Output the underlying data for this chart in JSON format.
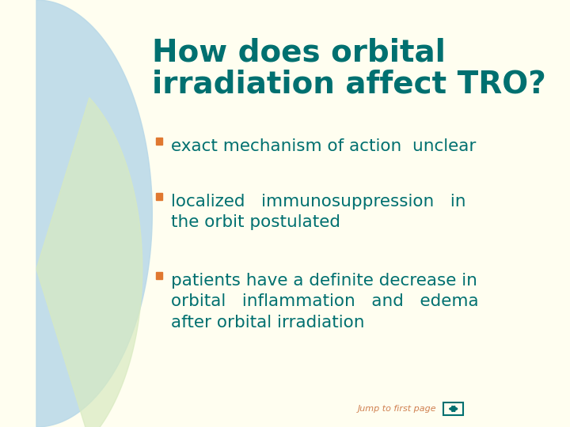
{
  "bg_color": "#fffef0",
  "arc_color_top": "#b8d8e8",
  "arc_color_bottom": "#d8eac0",
  "title_line1": "How does orbital",
  "title_line2": "irradiation affect TRO?",
  "title_color": "#007070",
  "bullet_color": "#e07830",
  "text_color": "#007070",
  "bullets": [
    "exact mechanism of action  unclear",
    "localized   immunosuppression   in\nthe orbit postulated",
    "patients have a definite decrease in\norbital   inflammation   and   edema\nafter orbital irradiation"
  ],
  "footer_text": "Jump to first page",
  "footer_color": "#d08050",
  "nav_color": "#007070",
  "title_fontsize": 28,
  "bullet_fontsize": 15.5
}
